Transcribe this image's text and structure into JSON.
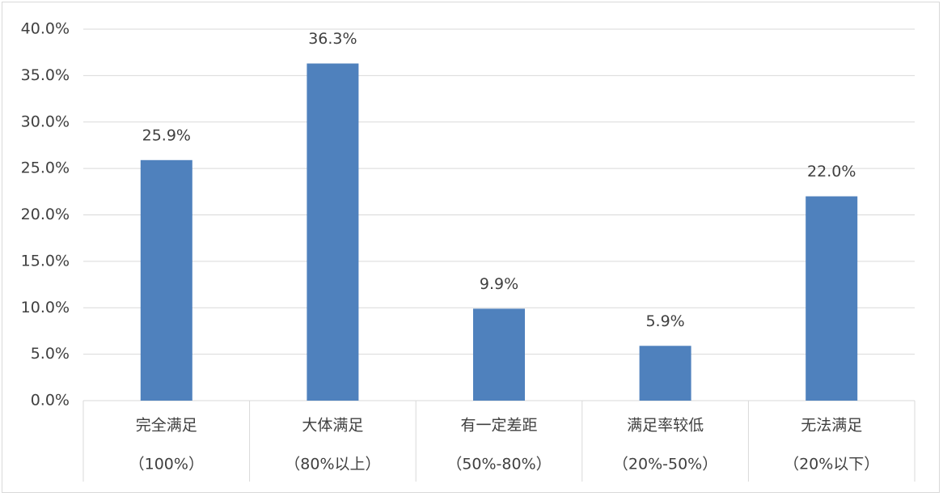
{
  "chart_data": {
    "type": "bar",
    "categories": [
      [
        "完全满足",
        "（100%）"
      ],
      [
        "大体满足",
        "（80%以上）"
      ],
      [
        "有一定差距",
        "（50%-80%）"
      ],
      [
        "满足率较低",
        "（20%-50%）"
      ],
      [
        "无法满足",
        "（20%以下）"
      ]
    ],
    "values": [
      25.9,
      36.3,
      9.9,
      5.9,
      22.0
    ],
    "value_labels": [
      "25.9%",
      "36.3%",
      "9.9%",
      "5.9%",
      "22.0%"
    ],
    "color": "#4f81bd",
    "ylim": [
      0,
      40
    ],
    "yticks": [
      {
        "value": 0,
        "label": "0.0%"
      },
      {
        "value": 5,
        "label": "5.0%"
      },
      {
        "value": 10,
        "label": "10.0%"
      },
      {
        "value": 15,
        "label": "15.0%"
      },
      {
        "value": 20,
        "label": "20.0%"
      },
      {
        "value": 25,
        "label": "25.0%"
      },
      {
        "value": 30,
        "label": "30.0%"
      },
      {
        "value": 35,
        "label": "35.0%"
      },
      {
        "value": 40,
        "label": "40.0%"
      }
    ],
    "grid": true
  }
}
